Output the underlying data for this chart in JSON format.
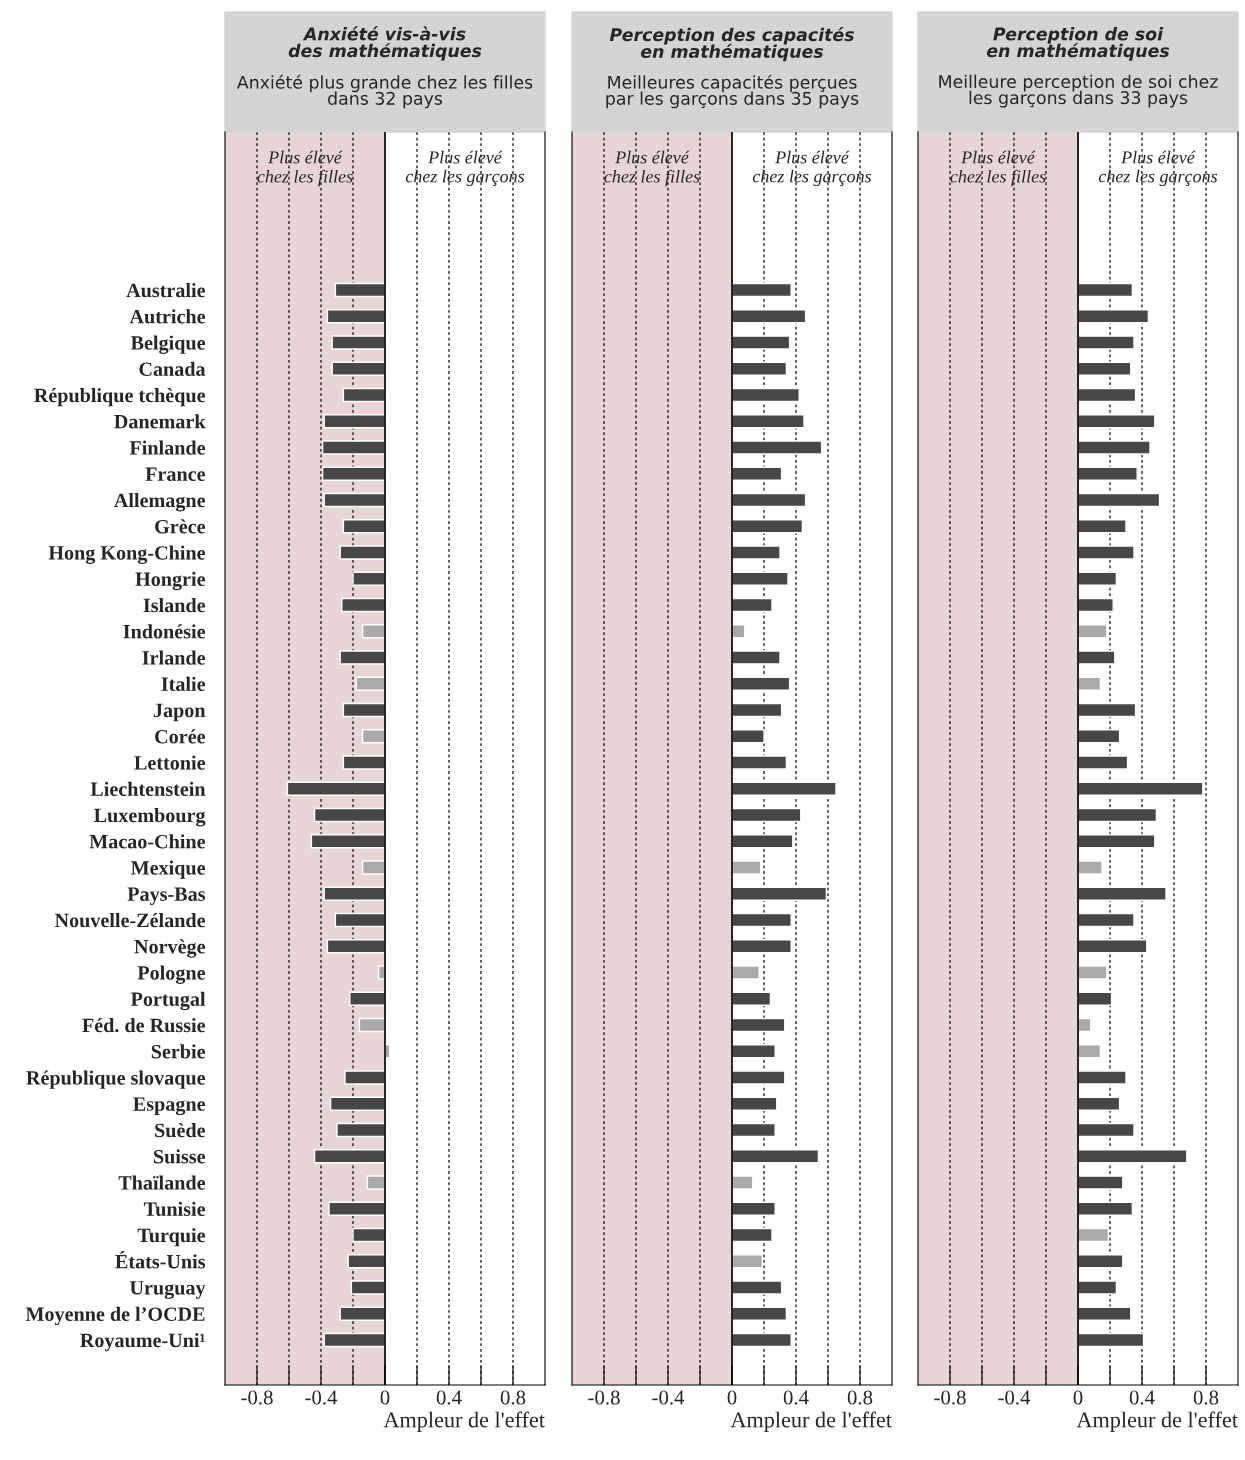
{
  "chart_data": [
    {
      "type": "bar",
      "orientation": "horizontal",
      "title": "Anxiété vis-à-vis\ndes mathématiques",
      "subtitle": "Anxiété plus grande chez les filles\ndans 32 pays",
      "xlabel": "Ampleur de l'effet",
      "annotations": [
        "Plus élevé\nchez les filles",
        "Plus élevé\nchez les garçons"
      ],
      "categories": [
        "Australie",
        "Autriche",
        "Belgique",
        "Canada",
        "République tchèque",
        "Danemark",
        "Finlande",
        "France",
        "Allemagne",
        "Grèce",
        "Hong Kong-Chine",
        "Hongrie",
        "Islande",
        "Indonésie",
        "Irlande",
        "Italie",
        "Japon",
        "Corée",
        "Lettonie",
        "Liechtenstein",
        "Luxembourg",
        "Macao-Chine",
        "Mexique",
        "Pays-Bas",
        "Nouvelle-Zélande",
        "Norvège",
        "Pologne",
        "Portugal",
        "Féd. de Russie",
        "Serbie",
        "République slovaque",
        "Espagne",
        "Suède",
        "Suisse",
        "Thaïlande",
        "Tunisie",
        "Turquie",
        "États-Unis",
        "Uruguay",
        "Moyenne de l’OCDE",
        "Royaume-Uni¹"
      ],
      "values": [
        -0.31,
        -0.36,
        -0.33,
        -0.33,
        -0.26,
        -0.38,
        -0.39,
        -0.39,
        -0.38,
        -0.26,
        -0.28,
        -0.2,
        -0.27,
        -0.14,
        -0.28,
        -0.18,
        -0.26,
        -0.14,
        -0.26,
        -0.61,
        -0.44,
        -0.46,
        -0.14,
        -0.38,
        -0.31,
        -0.36,
        -0.04,
        -0.22,
        -0.16,
        0.03,
        -0.25,
        -0.34,
        -0.3,
        -0.44,
        -0.11,
        -0.35,
        -0.2,
        -0.23,
        -0.21,
        -0.28,
        -0.38
      ],
      "colors": [
        "#474747",
        "#474747",
        "#474747",
        "#474747",
        "#474747",
        "#474747",
        "#474747",
        "#474747",
        "#474747",
        "#474747",
        "#474747",
        "#474747",
        "#474747",
        "#aaaaaa",
        "#474747",
        "#aaaaaa",
        "#474747",
        "#aaaaaa",
        "#474747",
        "#474747",
        "#474747",
        "#474747",
        "#aaaaaa",
        "#474747",
        "#474747",
        "#474747",
        "#aaaaaa",
        "#474747",
        "#aaaaaa",
        "#aaaaaa",
        "#474747",
        "#474747",
        "#474747",
        "#474747",
        "#aaaaaa",
        "#474747",
        "#474747",
        "#474747",
        "#474747",
        "#474747",
        "#474747"
      ],
      "xlim": [
        -1,
        1
      ],
      "xticks": [
        -0.8,
        {
          "value": -0.6,
          "label": null
        },
        -0.4,
        {
          "value": -0.2,
          "label": null
        },
        0,
        {
          "value": 0.2,
          "label": null
        },
        0.4,
        {
          "value": 0.6,
          "label": null
        },
        0.8
      ],
      "bands": [
        {
          "axis": "x",
          "from": -1,
          "to": 0,
          "color": "#e8d6d6"
        }
      ],
      "grid": "x"
    },
    {
      "type": "bar",
      "orientation": "horizontal",
      "title": "Perception des capacités\nen mathématiques",
      "subtitle": "Meilleures capacités perçues\npar les garçons dans 35 pays",
      "xlabel": "Ampleur de l'effet",
      "annotations": [
        "Plus élevé\nchez les filles",
        "Plus élevé\nchez les garçons"
      ],
      "categories": [
        null,
        null,
        null,
        null,
        null,
        null,
        null,
        null,
        null,
        null,
        null,
        null,
        null,
        null,
        null,
        null,
        null,
        null,
        null,
        null,
        null,
        null,
        null,
        null,
        null,
        null,
        null,
        null,
        null,
        null,
        null,
        null,
        null,
        null,
        null,
        null,
        null,
        null,
        null,
        null,
        null
      ],
      "values": [
        0.37,
        0.46,
        0.36,
        0.34,
        0.42,
        0.45,
        0.56,
        0.31,
        0.46,
        0.44,
        0.3,
        0.35,
        0.25,
        0.08,
        0.3,
        0.36,
        0.31,
        0.2,
        0.34,
        0.65,
        0.43,
        0.38,
        0.18,
        0.59,
        0.37,
        0.37,
        0.17,
        0.24,
        0.33,
        0.27,
        0.33,
        0.28,
        0.27,
        0.54,
        0.13,
        0.27,
        0.25,
        0.19,
        0.31,
        0.34,
        0.37
      ],
      "colors": [
        "#474747",
        "#474747",
        "#474747",
        "#474747",
        "#474747",
        "#474747",
        "#474747",
        "#474747",
        "#474747",
        "#474747",
        "#474747",
        "#474747",
        "#474747",
        "#aaaaaa",
        "#474747",
        "#474747",
        "#474747",
        "#474747",
        "#474747",
        "#474747",
        "#474747",
        "#474747",
        "#aaaaaa",
        "#474747",
        "#474747",
        "#474747",
        "#aaaaaa",
        "#474747",
        "#474747",
        "#474747",
        "#474747",
        "#474747",
        "#474747",
        "#474747",
        "#aaaaaa",
        "#474747",
        "#474747",
        "#aaaaaa",
        "#474747",
        "#474747",
        "#474747"
      ],
      "xlim": [
        -1,
        1
      ],
      "xticks": [
        -0.8,
        {
          "value": -0.6,
          "label": null
        },
        -0.4,
        {
          "value": -0.2,
          "label": null
        },
        0,
        {
          "value": 0.2,
          "label": null
        },
        0.4,
        {
          "value": 0.6,
          "label": null
        },
        0.8
      ],
      "bands": [
        {
          "axis": "x",
          "from": -1,
          "to": 0,
          "color": "#e8d6d6"
        }
      ],
      "grid": "x"
    },
    {
      "type": "bar",
      "orientation": "horizontal",
      "title": "Perception de soi\nen mathématiques",
      "subtitle": "Meilleure perception de soi chez\nles garçons dans 33 pays",
      "xlabel": "Ampleur de l'effet",
      "annotations": [
        "Plus élevé\nchez les filles",
        "Plus élevé\nchez les garçons"
      ],
      "categories": [
        null,
        null,
        null,
        null,
        null,
        null,
        null,
        null,
        null,
        null,
        null,
        null,
        null,
        null,
        null,
        null,
        null,
        null,
        null,
        null,
        null,
        null,
        null,
        null,
        null,
        null,
        null,
        null,
        null,
        null,
        null,
        null,
        null,
        null,
        null,
        null,
        null,
        null,
        null,
        null,
        null
      ],
      "values": [
        0.34,
        0.44,
        0.35,
        0.33,
        0.36,
        0.48,
        0.45,
        0.37,
        0.51,
        0.3,
        0.35,
        0.24,
        0.22,
        0.18,
        0.23,
        0.14,
        0.36,
        0.26,
        0.31,
        0.78,
        0.49,
        0.48,
        0.15,
        0.55,
        0.35,
        0.43,
        0.18,
        0.21,
        0.08,
        0.14,
        0.3,
        0.26,
        0.35,
        0.68,
        0.28,
        0.34,
        0.19,
        0.28,
        0.24,
        0.33,
        0.41
      ],
      "colors": [
        "#474747",
        "#474747",
        "#474747",
        "#474747",
        "#474747",
        "#474747",
        "#474747",
        "#474747",
        "#474747",
        "#474747",
        "#474747",
        "#474747",
        "#474747",
        "#aaaaaa",
        "#474747",
        "#aaaaaa",
        "#474747",
        "#474747",
        "#474747",
        "#474747",
        "#474747",
        "#474747",
        "#aaaaaa",
        "#474747",
        "#474747",
        "#474747",
        "#aaaaaa",
        "#474747",
        "#aaaaaa",
        "#aaaaaa",
        "#474747",
        "#474747",
        "#474747",
        "#474747",
        "#474747",
        "#474747",
        "#aaaaaa",
        "#474747",
        "#474747",
        "#474747",
        "#474747"
      ],
      "xlim": [
        -1,
        1
      ],
      "xticks": [
        -0.8,
        {
          "value": -0.6,
          "label": null
        },
        -0.4,
        {
          "value": -0.2,
          "label": null
        },
        0,
        {
          "value": 0.2,
          "label": null
        },
        0.4,
        {
          "value": 0.6,
          "label": null
        },
        0.8
      ],
      "bands": [
        {
          "axis": "x",
          "from": -1,
          "to": 0,
          "color": "#e8d6d6"
        }
      ],
      "grid": "x"
    }
  ]
}
